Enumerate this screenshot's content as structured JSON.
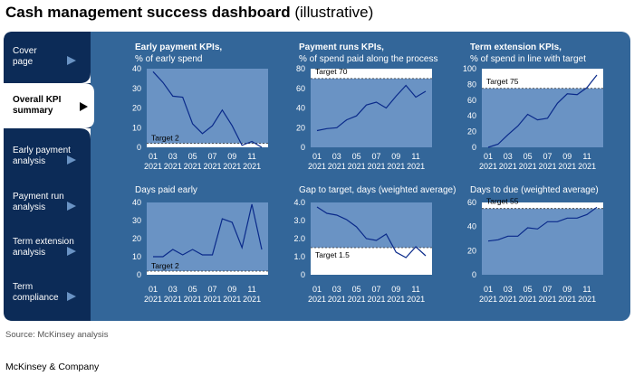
{
  "header": {
    "title_bold": "Cash management success dashboard",
    "title_light": "(illustrative)"
  },
  "sidebar": {
    "items": [
      {
        "line1": "Cover",
        "line2": "page",
        "active": false
      },
      {
        "line1": "Overall KPI",
        "line2": "summary",
        "active": true
      },
      {
        "line1": "Early payment",
        "line2": "analysis",
        "active": false
      },
      {
        "line1": "Payment run",
        "line2": "analysis",
        "active": false
      },
      {
        "line1": "Term extension",
        "line2": "analysis",
        "active": false
      },
      {
        "line1": "Term",
        "line2": "compliance",
        "active": false
      }
    ]
  },
  "footer": {
    "source": "Source: McKinsey analysis",
    "brand": "McKinsey & Company"
  },
  "colors": {
    "panel": "#336699",
    "plot": "#6a93c4",
    "nav": "#0c2b57",
    "line": "#0a2a8a",
    "target_band": "#ffffff"
  },
  "chart_data": [
    {
      "type": "line",
      "title": "Early payment KPIs,",
      "subtitle": "% of early spend",
      "ylim": [
        0,
        40
      ],
      "yticks": [
        0,
        10,
        20,
        30,
        40
      ],
      "x_month_labels": [
        "01",
        "03",
        "05",
        "07",
        "09",
        "11"
      ],
      "x_year_labels": [
        "2021",
        "2021",
        "2021",
        "2021",
        "2021",
        "2021"
      ],
      "values": [
        38.5,
        33,
        26,
        25.5,
        12,
        7,
        11,
        19,
        11,
        1,
        3,
        0
      ],
      "target": 2,
      "target_label": "Target 2",
      "target_side": "below"
    },
    {
      "type": "line",
      "title": "Payment runs KPIs,",
      "subtitle": "% of spend paid along the process",
      "ylim": [
        0,
        80
      ],
      "yticks": [
        0,
        20,
        40,
        60,
        80
      ],
      "x_month_labels": [
        "01",
        "03",
        "05",
        "07",
        "09",
        "11"
      ],
      "x_year_labels": [
        "2021",
        "2021",
        "2021",
        "2021",
        "2021",
        "2021"
      ],
      "values": [
        17,
        19,
        20,
        28,
        32,
        43,
        46,
        40,
        52,
        63,
        51,
        57
      ],
      "target": 70,
      "target_label": "Target 70",
      "target_side": "above"
    },
    {
      "type": "line",
      "title": "Term extension KPIs,",
      "subtitle": "% of spend in line with target",
      "ylim": [
        0,
        100
      ],
      "yticks": [
        0,
        20,
        40,
        60,
        80,
        100
      ],
      "x_month_labels": [
        "01",
        "03",
        "05",
        "07",
        "09",
        "11"
      ],
      "x_year_labels": [
        "2021",
        "2021",
        "2021",
        "2021",
        "2021",
        "2021"
      ],
      "values": [
        0,
        4,
        16,
        27,
        42,
        35,
        37,
        56,
        68,
        67,
        76,
        92
      ],
      "target": 75,
      "target_label": "Target 75",
      "target_side": "above"
    },
    {
      "type": "line",
      "title": "",
      "subtitle": "Days paid early",
      "ylim": [
        0,
        40
      ],
      "yticks": [
        0,
        10,
        20,
        30,
        40
      ],
      "x_month_labels": [
        "01",
        "03",
        "05",
        "07",
        "09",
        "11"
      ],
      "x_year_labels": [
        "2021",
        "2021",
        "2021",
        "2021",
        "2021",
        "2021"
      ],
      "values": [
        10,
        10,
        14,
        11,
        14,
        11,
        11,
        31,
        29,
        15,
        39,
        14
      ],
      "target": 2,
      "target_label": "Target 2",
      "target_side": "below"
    },
    {
      "type": "line",
      "title": "",
      "subtitle": "Gap to target, days (weighted average)",
      "ylim": [
        0,
        4
      ],
      "yticks": [
        "0",
        "1.0",
        "2.0",
        "3.0",
        "4.0"
      ],
      "x_month_labels": [
        "01",
        "03",
        "05",
        "07",
        "09",
        "11"
      ],
      "x_year_labels": [
        "2021",
        "2021",
        "2021",
        "2021",
        "2021",
        "2021"
      ],
      "values": [
        3.75,
        3.4,
        3.3,
        3.05,
        2.65,
        2.0,
        1.9,
        2.25,
        1.25,
        0.95,
        1.55,
        1.05
      ],
      "target": 1.5,
      "target_label": "Target 1.5",
      "target_side": "below"
    },
    {
      "type": "line",
      "title": "",
      "subtitle": "Days to due (weighted average)",
      "ylim": [
        0,
        60
      ],
      "yticks": [
        0,
        20,
        40,
        60
      ],
      "x_month_labels": [
        "01",
        "03",
        "05",
        "07",
        "09",
        "11"
      ],
      "x_year_labels": [
        "2021",
        "2021",
        "2021",
        "2021",
        "2021",
        "2021"
      ],
      "values": [
        28,
        29,
        32,
        32,
        39,
        38,
        44,
        44,
        47,
        47,
        50,
        56
      ],
      "target": 55,
      "target_label": "Target 55",
      "target_side": "above"
    }
  ]
}
